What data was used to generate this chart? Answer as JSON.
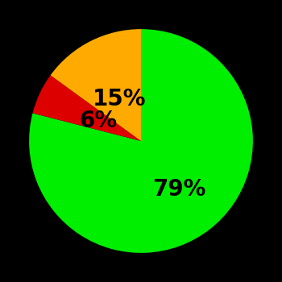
{
  "slices": [
    79,
    6,
    15
  ],
  "colors": [
    "#00ee00",
    "#dd0000",
    "#ffaa00"
  ],
  "labels": [
    "79%",
    "6%",
    "15%"
  ],
  "background_color": "#000000",
  "text_color": "#000000",
  "startangle": 90,
  "counterclock": false,
  "label_fontsize": 20,
  "label_fontweight": "bold",
  "radii": [
    0.55,
    0.42,
    0.42
  ]
}
